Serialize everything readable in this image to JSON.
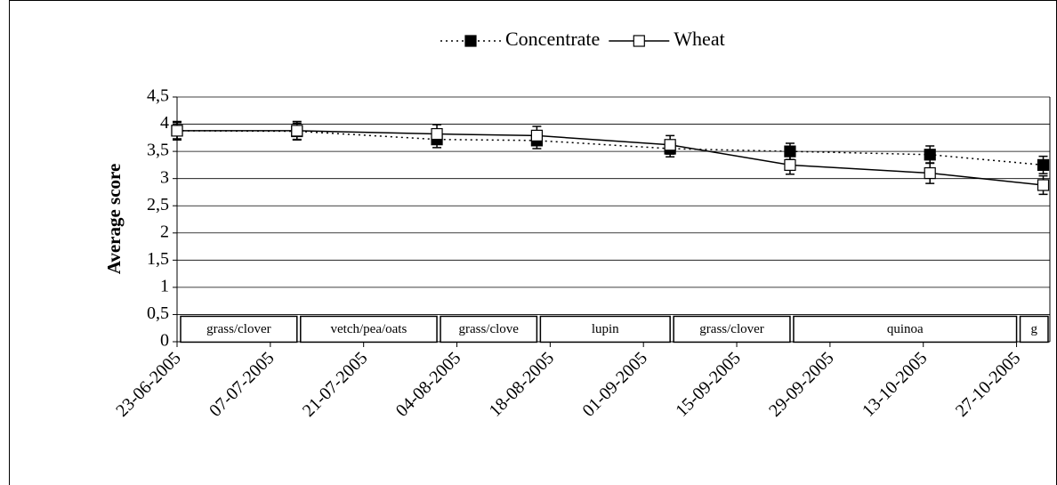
{
  "chart_data": {
    "type": "line",
    "y_label": "Average score",
    "x": [
      "23-06-2005",
      "11-07-2005",
      "01-08-2005",
      "16-08-2005",
      "05-09-2005",
      "23-09-2005",
      "14-10-2005",
      "31-10-2005"
    ],
    "series": [
      {
        "name": "Concentrate",
        "color": "#000000",
        "style": "dotted",
        "marker": "filled-square",
        "values": [
          3.88,
          3.87,
          3.72,
          3.7,
          3.55,
          3.5,
          3.44,
          3.25
        ],
        "errors": [
          0.15,
          0.15,
          0.15,
          0.15,
          0.15,
          0.15,
          0.16,
          0.16
        ]
      },
      {
        "name": "Wheat",
        "color": "#000000",
        "style": "solid",
        "marker": "open-square",
        "values": [
          3.88,
          3.88,
          3.82,
          3.79,
          3.62,
          3.25,
          3.1,
          2.88
        ],
        "errors": [
          0.17,
          0.17,
          0.17,
          0.17,
          0.17,
          0.17,
          0.19,
          0.17
        ]
      }
    ],
    "crops": [
      {
        "label": "grass/clover",
        "start": "23-06-2005",
        "end": "11-07-2005"
      },
      {
        "label": "vetch/pea/oats",
        "start": "11-07-2005",
        "end": "01-08-2005"
      },
      {
        "label": "grass/clove",
        "start": "01-08-2005",
        "end": "16-08-2005"
      },
      {
        "label": "lupin",
        "start": "16-08-2005",
        "end": "05-09-2005"
      },
      {
        "label": "grass/clover",
        "start": "05-09-2005",
        "end": "23-09-2005"
      },
      {
        "label": "quinoa",
        "start": "23-09-2005",
        "end": "27-10-2005"
      },
      {
        "label": "g",
        "start": "27-10-2005",
        "end": "01-11-2005"
      }
    ],
    "xlim": [
      "23-06-2005",
      "01-11-2005"
    ],
    "xticks": [
      "23-06-2005",
      "07-07-2005",
      "21-07-2005",
      "04-08-2005",
      "18-08-2005",
      "01-09-2005",
      "15-09-2005",
      "29-09-2005",
      "13-10-2005",
      "27-10-2005"
    ],
    "ylim": [
      0,
      4.5
    ],
    "yticks": [
      0,
      {
        "value": 0.5,
        "label": "0,5"
      },
      1,
      {
        "value": 1.5,
        "label": "1,5"
      },
      2,
      {
        "value": 2.5,
        "label": "2,5"
      },
      3,
      {
        "value": 3.5,
        "label": "3,5"
      },
      4,
      {
        "value": 4.5,
        "label": "4,5"
      }
    ],
    "grid": true,
    "legend": "top"
  }
}
